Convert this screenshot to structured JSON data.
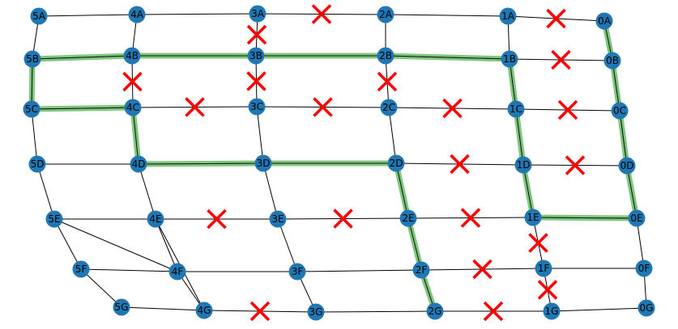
{
  "colors": {
    "node_fill": "#1f77b4",
    "edge": "#000000",
    "highlight": "#2ca02c",
    "cross": "#ff0000",
    "background": "#ffffff"
  },
  "nodes": [
    {
      "id": "5A",
      "label": "5A"
    },
    {
      "id": "4A",
      "label": "4A"
    },
    {
      "id": "3A",
      "label": "3A"
    },
    {
      "id": "2A",
      "label": "2A"
    },
    {
      "id": "1A",
      "label": "1A"
    },
    {
      "id": "0A",
      "label": "0A"
    },
    {
      "id": "5B",
      "label": "5B"
    },
    {
      "id": "4B",
      "label": "4B"
    },
    {
      "id": "3B",
      "label": "3B"
    },
    {
      "id": "2B",
      "label": "2B"
    },
    {
      "id": "1B",
      "label": "1B"
    },
    {
      "id": "0B",
      "label": "0B"
    },
    {
      "id": "5C",
      "label": "5C"
    },
    {
      "id": "4C",
      "label": "4C"
    },
    {
      "id": "3C",
      "label": "3C"
    },
    {
      "id": "2C",
      "label": "2C"
    },
    {
      "id": "1C",
      "label": "1C"
    },
    {
      "id": "0C",
      "label": "0C"
    },
    {
      "id": "5D",
      "label": "5D"
    },
    {
      "id": "4D",
      "label": "4D"
    },
    {
      "id": "3D",
      "label": "3D"
    },
    {
      "id": "2D",
      "label": "2D"
    },
    {
      "id": "1D",
      "label": "1D"
    },
    {
      "id": "0D",
      "label": "0D"
    },
    {
      "id": "5E",
      "label": "5E"
    },
    {
      "id": "4E",
      "label": "4E"
    },
    {
      "id": "3E",
      "label": "3E"
    },
    {
      "id": "2E",
      "label": "2E"
    },
    {
      "id": "1E",
      "label": "1E"
    },
    {
      "id": "0E",
      "label": "0E"
    },
    {
      "id": "5F",
      "label": "5F"
    },
    {
      "id": "4F",
      "label": "4F"
    },
    {
      "id": "3F",
      "label": "3F"
    },
    {
      "id": "2F",
      "label": "2F"
    },
    {
      "id": "1F",
      "label": "1F"
    },
    {
      "id": "0F",
      "label": "0F"
    },
    {
      "id": "5G",
      "label": "5G"
    },
    {
      "id": "4G",
      "label": "4G"
    },
    {
      "id": "3G",
      "label": "3G"
    },
    {
      "id": "2G",
      "label": "2G"
    },
    {
      "id": "1G",
      "label": "1G"
    },
    {
      "id": "0G",
      "label": "0G"
    }
  ],
  "edges": [
    [
      "5A",
      "4A"
    ],
    [
      "4A",
      "3A"
    ],
    [
      "3A",
      "2A"
    ],
    [
      "2A",
      "1A"
    ],
    [
      "1A",
      "0A"
    ],
    [
      "5B",
      "4B"
    ],
    [
      "4B",
      "3B"
    ],
    [
      "3B",
      "2B"
    ],
    [
      "2B",
      "1B"
    ],
    [
      "1B",
      "0B"
    ],
    [
      "5C",
      "4C"
    ],
    [
      "4C",
      "3C"
    ],
    [
      "3C",
      "2C"
    ],
    [
      "2C",
      "1C"
    ],
    [
      "1C",
      "0C"
    ],
    [
      "5D",
      "4D"
    ],
    [
      "4D",
      "3D"
    ],
    [
      "3D",
      "2D"
    ],
    [
      "2D",
      "1D"
    ],
    [
      "1D",
      "0D"
    ],
    [
      "5E",
      "4E"
    ],
    [
      "4E",
      "3E"
    ],
    [
      "3E",
      "2E"
    ],
    [
      "2E",
      "1E"
    ],
    [
      "1E",
      "0E"
    ],
    [
      "5F",
      "4F"
    ],
    [
      "4F",
      "3F"
    ],
    [
      "3F",
      "2F"
    ],
    [
      "2F",
      "1F"
    ],
    [
      "1F",
      "0F"
    ],
    [
      "5G",
      "4G"
    ],
    [
      "4G",
      "3G"
    ],
    [
      "3G",
      "2G"
    ],
    [
      "2G",
      "1G"
    ],
    [
      "1G",
      "0G"
    ],
    [
      "5A",
      "5B"
    ],
    [
      "5B",
      "5C"
    ],
    [
      "5C",
      "5D"
    ],
    [
      "5D",
      "5E"
    ],
    [
      "5E",
      "5F"
    ],
    [
      "5F",
      "5G"
    ],
    [
      "4A",
      "4B"
    ],
    [
      "4B",
      "4C"
    ],
    [
      "4C",
      "4D"
    ],
    [
      "4D",
      "4E"
    ],
    [
      "4E",
      "4F"
    ],
    [
      "4F",
      "4G"
    ],
    [
      "3A",
      "3B"
    ],
    [
      "3B",
      "3C"
    ],
    [
      "3C",
      "3D"
    ],
    [
      "3D",
      "3E"
    ],
    [
      "3E",
      "3F"
    ],
    [
      "3F",
      "3G"
    ],
    [
      "2A",
      "2B"
    ],
    [
      "2B",
      "2C"
    ],
    [
      "2C",
      "2D"
    ],
    [
      "2D",
      "2E"
    ],
    [
      "2E",
      "2F"
    ],
    [
      "2F",
      "2G"
    ],
    [
      "1A",
      "1B"
    ],
    [
      "1B",
      "1C"
    ],
    [
      "1C",
      "1D"
    ],
    [
      "1D",
      "1E"
    ],
    [
      "1E",
      "1F"
    ],
    [
      "1F",
      "1G"
    ],
    [
      "0A",
      "0B"
    ],
    [
      "0B",
      "0C"
    ],
    [
      "0C",
      "0D"
    ],
    [
      "0D",
      "0E"
    ],
    [
      "0E",
      "0F"
    ],
    [
      "0F",
      "0G"
    ],
    [
      "5E",
      "4F"
    ],
    [
      "4E",
      "4G"
    ]
  ],
  "highlighted_path": [
    [
      "5B",
      "4B"
    ],
    [
      "4B",
      "3B"
    ],
    [
      "3B",
      "2B"
    ],
    [
      "2B",
      "1B"
    ],
    [
      "5B",
      "5C"
    ],
    [
      "5C",
      "4C"
    ],
    [
      "4C",
      "4D"
    ],
    [
      "4D",
      "3D"
    ],
    [
      "3D",
      "2D"
    ],
    [
      "2D",
      "2E"
    ],
    [
      "2E",
      "2F"
    ],
    [
      "2F",
      "2G"
    ],
    [
      "1B",
      "1C"
    ],
    [
      "1C",
      "1D"
    ],
    [
      "1D",
      "1E"
    ],
    [
      "1E",
      "0E"
    ],
    [
      "0A",
      "0B"
    ],
    [
      "0B",
      "0C"
    ],
    [
      "0C",
      "0D"
    ],
    [
      "0D",
      "0E"
    ]
  ],
  "blocked_edges": [
    [
      "3A",
      "2A"
    ],
    [
      "1A",
      "0A"
    ],
    [
      "3A",
      "3B"
    ],
    [
      "1B",
      "0B"
    ],
    [
      "4B",
      "4C"
    ],
    [
      "3B",
      "3C"
    ],
    [
      "2B",
      "2C"
    ],
    [
      "4C",
      "3C"
    ],
    [
      "3C",
      "2C"
    ],
    [
      "2C",
      "1C"
    ],
    [
      "1C",
      "0C"
    ],
    [
      "2D",
      "1D"
    ],
    [
      "1D",
      "0D"
    ],
    [
      "4E",
      "3E"
    ],
    [
      "3E",
      "2E"
    ],
    [
      "2E",
      "1E"
    ],
    [
      "1E",
      "1F"
    ],
    [
      "2F",
      "1F"
    ],
    [
      "1F",
      "1G"
    ],
    [
      "4G",
      "3G"
    ],
    [
      "2G",
      "1G"
    ]
  ]
}
